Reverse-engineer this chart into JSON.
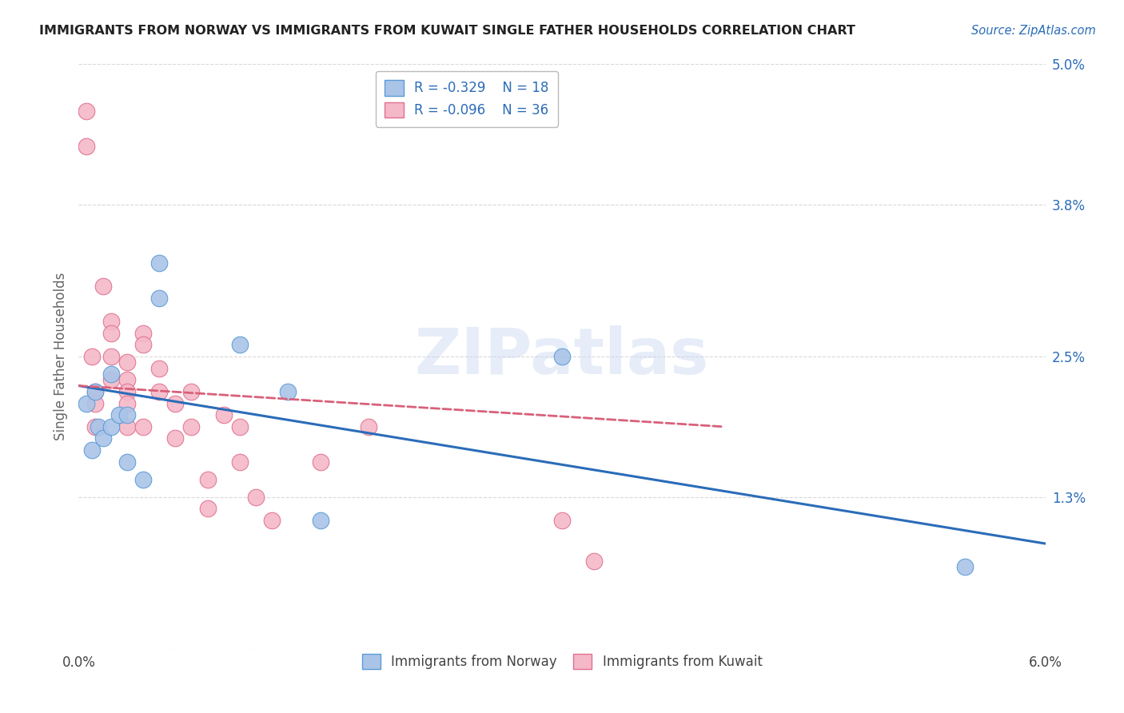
{
  "title": "IMMIGRANTS FROM NORWAY VS IMMIGRANTS FROM KUWAIT SINGLE FATHER HOUSEHOLDS CORRELATION CHART",
  "source": "Source: ZipAtlas.com",
  "ylabel": "Single Father Households",
  "x_min": 0.0,
  "x_max": 0.06,
  "y_min": 0.0,
  "y_max": 0.05,
  "x_ticks": [
    0.0,
    0.01,
    0.02,
    0.03,
    0.04,
    0.05,
    0.06
  ],
  "x_tick_labels": [
    "0.0%",
    "",
    "",
    "",
    "",
    "",
    "6.0%"
  ],
  "y_ticks": [
    0.0,
    0.013,
    0.025,
    0.038,
    0.05
  ],
  "y_tick_labels": [
    "",
    "1.3%",
    "2.5%",
    "3.8%",
    "5.0%"
  ],
  "norway_color": "#aac4e8",
  "norway_edge_color": "#5b9bd5",
  "kuwait_color": "#f4b8c8",
  "kuwait_edge_color": "#e07090",
  "norway_line_color": "#2b6cb8",
  "kuwait_line_color": "#d9607a",
  "norway_R": -0.329,
  "norway_N": 18,
  "kuwait_R": -0.096,
  "kuwait_N": 36,
  "norway_line_x0": 0.0,
  "norway_line_y0": 0.0225,
  "norway_line_x1": 0.06,
  "norway_line_y1": 0.009,
  "kuwait_line_x0": 0.0,
  "kuwait_line_y0": 0.0225,
  "kuwait_line_x1": 0.04,
  "kuwait_line_y1": 0.019,
  "norway_points_x": [
    0.0005,
    0.0008,
    0.001,
    0.0012,
    0.0015,
    0.002,
    0.002,
    0.0025,
    0.003,
    0.003,
    0.004,
    0.005,
    0.005,
    0.01,
    0.013,
    0.015,
    0.03,
    0.055
  ],
  "norway_points_y": [
    0.021,
    0.017,
    0.022,
    0.019,
    0.018,
    0.0235,
    0.019,
    0.02,
    0.02,
    0.016,
    0.0145,
    0.033,
    0.03,
    0.026,
    0.022,
    0.011,
    0.025,
    0.007
  ],
  "kuwait_points_x": [
    0.0005,
    0.0005,
    0.0008,
    0.001,
    0.001,
    0.001,
    0.0015,
    0.002,
    0.002,
    0.002,
    0.002,
    0.003,
    0.003,
    0.003,
    0.003,
    0.003,
    0.004,
    0.004,
    0.004,
    0.005,
    0.005,
    0.006,
    0.006,
    0.007,
    0.007,
    0.008,
    0.008,
    0.009,
    0.01,
    0.01,
    0.011,
    0.012,
    0.015,
    0.018,
    0.03,
    0.032
  ],
  "kuwait_points_y": [
    0.046,
    0.043,
    0.025,
    0.022,
    0.021,
    0.019,
    0.031,
    0.028,
    0.027,
    0.025,
    0.023,
    0.0245,
    0.023,
    0.022,
    0.021,
    0.019,
    0.027,
    0.026,
    0.019,
    0.024,
    0.022,
    0.021,
    0.018,
    0.022,
    0.019,
    0.0145,
    0.012,
    0.02,
    0.019,
    0.016,
    0.013,
    0.011,
    0.016,
    0.019,
    0.011,
    0.0075
  ],
  "watermark_text": "ZIPatlas",
  "background_color": "#ffffff",
  "grid_color": "#d0d0d0"
}
